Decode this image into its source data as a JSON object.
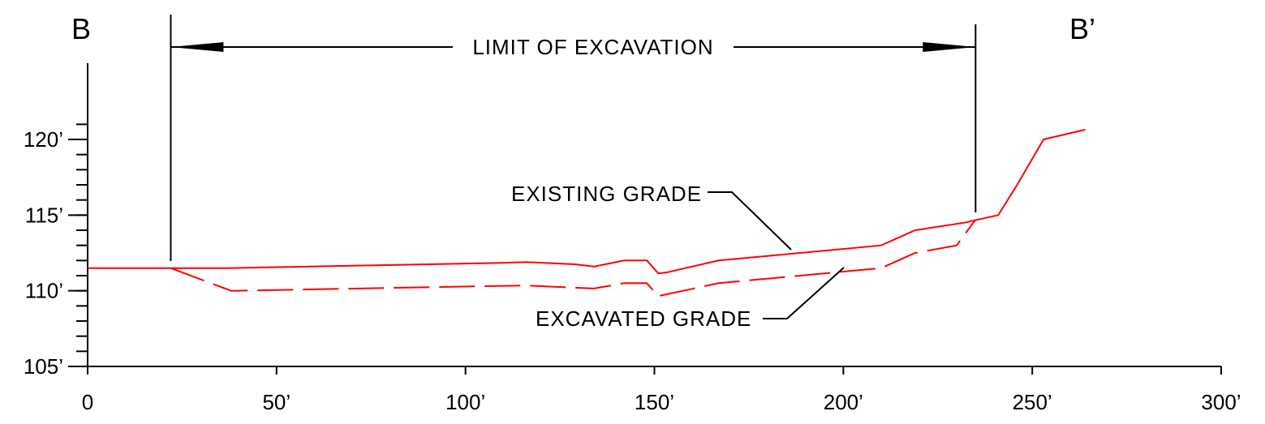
{
  "section": {
    "start_label": "B",
    "end_label": "B’"
  },
  "annotations": {
    "limit": "LIMIT OF EXCAVATION",
    "existing": "EXISTING GRADE",
    "excavated": "EXCAVATED GRADE"
  },
  "colors": {
    "profile": "#ff0000",
    "linework": "#000000"
  },
  "chart_data": {
    "type": "line",
    "x_ticks": [
      "0",
      "50’",
      "100’",
      "150’",
      "200’",
      "250’",
      "300’"
    ],
    "x_tick_values": [
      0,
      50,
      100,
      150,
      200,
      250,
      300
    ],
    "y_ticks": [
      "105’",
      "110’",
      "115’",
      "120’"
    ],
    "y_tick_values": [
      105,
      110,
      115,
      120
    ],
    "xlim": [
      0,
      300
    ],
    "ylim": [
      105,
      121
    ],
    "limit_of_excavation": [
      22,
      235
    ],
    "series": [
      {
        "name": "EXISTING GRADE",
        "style": "solid",
        "points": [
          [
            0,
            111.5
          ],
          [
            22,
            111.5
          ],
          [
            37,
            111.5
          ],
          [
            111,
            111.85
          ],
          [
            116,
            111.9
          ],
          [
            129,
            111.75
          ],
          [
            134,
            111.6
          ],
          [
            142,
            112
          ],
          [
            148,
            112
          ],
          [
            151,
            111.15
          ],
          [
            153,
            111.2
          ],
          [
            167,
            112
          ],
          [
            210,
            113
          ],
          [
            219,
            114
          ],
          [
            232,
            114.5
          ],
          [
            241,
            115
          ],
          [
            246,
            117
          ],
          [
            253,
            120
          ],
          [
            264,
            120.65
          ]
        ]
      },
      {
        "name": "EXCAVATED GRADE",
        "style": "dashed",
        "points": [
          [
            22,
            111.5
          ],
          [
            38,
            110
          ],
          [
            116,
            110.35
          ],
          [
            134,
            110.15
          ],
          [
            142,
            110.5
          ],
          [
            148,
            110.5
          ],
          [
            151,
            109.65
          ],
          [
            167,
            110.5
          ],
          [
            210,
            111.5
          ],
          [
            219,
            112.5
          ],
          [
            230,
            113
          ],
          [
            235,
            114.7
          ]
        ]
      }
    ],
    "grid": false
  }
}
